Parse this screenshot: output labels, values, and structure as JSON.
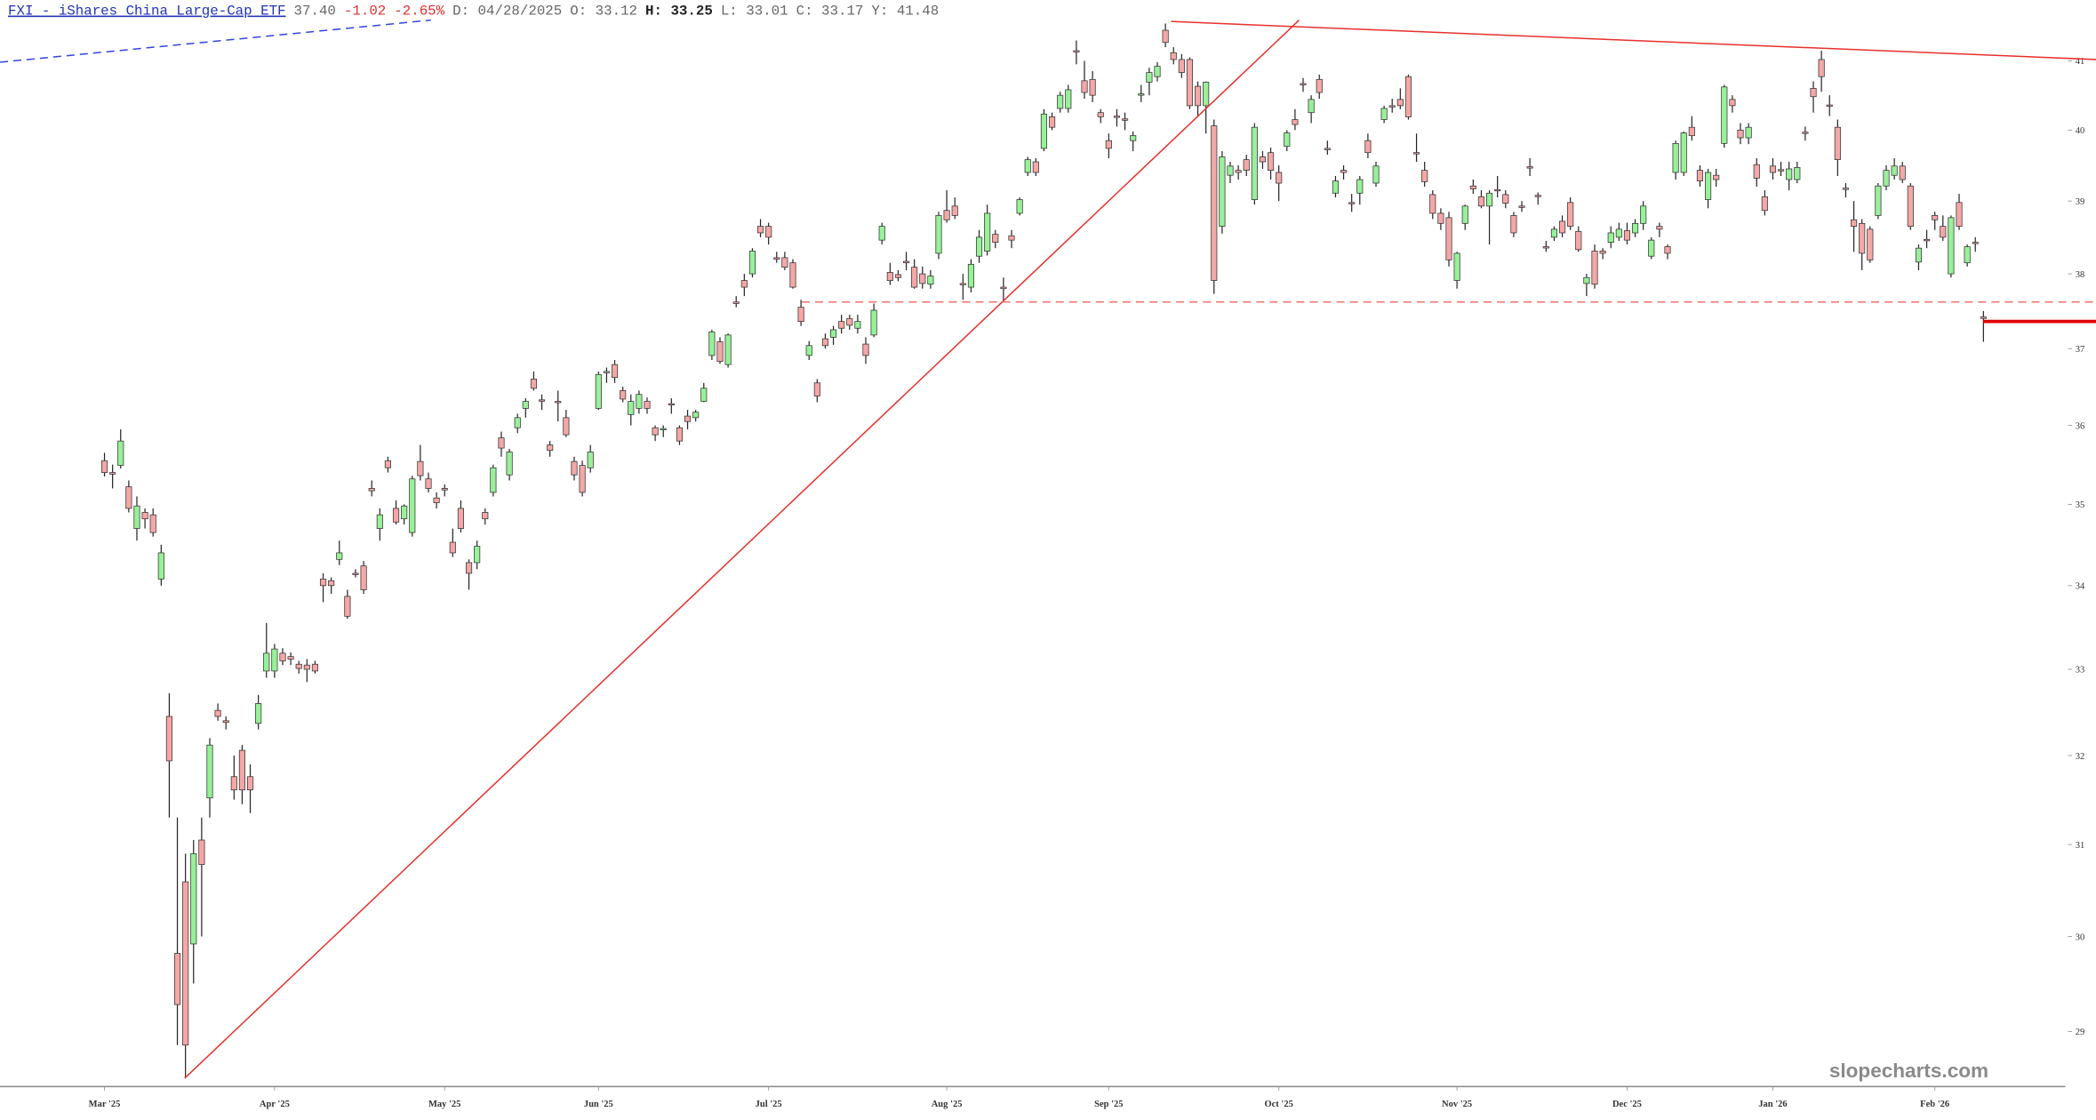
{
  "chart_data": {
    "type": "candlestick",
    "title": "FXI - iShares China Large-Cap ETF",
    "quote": {
      "last": "37.40",
      "change": "-1.02",
      "change_pct": "-2.65%",
      "date": "D: 04/28/2025",
      "open": "O: 33.12",
      "high": "H: 33.25",
      "low": "L: 33.01",
      "close": "C: 33.17",
      "y": "Y: 41.48"
    },
    "watermark": "slopecharts.com",
    "log_scale": true,
    "ylim": [
      28.45,
      41.9
    ],
    "yticks": [
      29,
      30,
      31,
      32,
      33,
      34,
      35,
      36,
      37,
      38,
      39,
      40,
      41
    ],
    "xlim": [
      -12.9,
      245.9
    ],
    "xticks": [
      {
        "value": 0,
        "label": "Mar '25"
      },
      {
        "value": 21,
        "label": "Apr '25"
      },
      {
        "value": 42,
        "label": "May '25"
      },
      {
        "value": 61,
        "label": "Jun '25"
      },
      {
        "value": 82,
        "label": "Jul '25"
      },
      {
        "value": 104,
        "label": "Aug '25"
      },
      {
        "value": 124,
        "label": "Sep '25"
      },
      {
        "value": 145,
        "label": "Oct '25"
      },
      {
        "value": 167,
        "label": "Nov '25"
      },
      {
        "value": 188,
        "label": "Dec '25"
      },
      {
        "value": 206,
        "label": "Jan '26"
      },
      {
        "value": 226,
        "label": "Feb '26"
      }
    ],
    "up_color": "#98f098",
    "down_color": "#f4a7a7",
    "wick_color": "#222222",
    "x": [
      0,
      1,
      2,
      3,
      4,
      5,
      6,
      7,
      8,
      9,
      10,
      11,
      12,
      13,
      14,
      15,
      16,
      17,
      18,
      19,
      20,
      21,
      22,
      23,
      24,
      25,
      26,
      27,
      28,
      29,
      30,
      31,
      32,
      33,
      34,
      35,
      36,
      37,
      38,
      39,
      40,
      41,
      42,
      43,
      44,
      45,
      46,
      47,
      48,
      49,
      50,
      51,
      52,
      53,
      54,
      55,
      56,
      57,
      58,
      59,
      60,
      61,
      62,
      63,
      64,
      65,
      66,
      67,
      68,
      69,
      70,
      71,
      72,
      73,
      74,
      75,
      76,
      77,
      78,
      79,
      80,
      81,
      82,
      83,
      84,
      85,
      86,
      87,
      88,
      89,
      90,
      91,
      92,
      93,
      94,
      95,
      96,
      97,
      98,
      99,
      100,
      101,
      102,
      103,
      104,
      105,
      106,
      107,
      108,
      109,
      110,
      111,
      112,
      113,
      114,
      115,
      116,
      117,
      118,
      119,
      120,
      121,
      122,
      123,
      124,
      125,
      126,
      127,
      128,
      129,
      130,
      131,
      132,
      133,
      134,
      135,
      136,
      137,
      138,
      139,
      140,
      141,
      142,
      143,
      144,
      145,
      146,
      147,
      148,
      149,
      150,
      151,
      152,
      153,
      154,
      155,
      156,
      157,
      158,
      159,
      160,
      161,
      162,
      163,
      164,
      165,
      166,
      167,
      168,
      169,
      170,
      171,
      172,
      173,
      174,
      175,
      176,
      177,
      178,
      179,
      180,
      181,
      182,
      183,
      184,
      185,
      186,
      187,
      188,
      189,
      190,
      191,
      192,
      193,
      194,
      195,
      196,
      197,
      198,
      199,
      200,
      201,
      202,
      203,
      204,
      205,
      206,
      207,
      208,
      209,
      210,
      211,
      212,
      213,
      214,
      215,
      216,
      217,
      218,
      219,
      220,
      221,
      222,
      223,
      224,
      225,
      226,
      227,
      228,
      229,
      230,
      231,
      232
    ],
    "open": [
      35.55,
      35.4,
      35.49,
      35.22,
      34.7,
      34.9,
      34.87,
      34.08,
      32.45,
      29.82,
      30.59,
      29.92,
      31.05,
      31.52,
      32.52,
      32.4,
      31.76,
      32.06,
      31.76,
      32.37,
      32.98,
      32.98,
      33.19,
      33.15,
      33.06,
      33.05,
      33.06,
      34.08,
      34.06,
      34.32,
      33.87,
      34.15,
      34.24,
      35.2,
      34.7,
      35.55,
      34.95,
      34.82,
      34.65,
      35.54,
      35.32,
      35.08,
      35.2,
      34.53,
      34.95,
      34.28,
      34.28,
      34.9,
      35.15,
      35.84,
      35.37,
      35.97,
      36.22,
      36.6,
      36.33,
      35.75,
      36.31,
      36.1,
      35.54,
      35.49,
      35.46,
      36.22,
      36.69,
      36.79,
      36.45,
      36.14,
      36.22,
      36.31,
      35.97,
      35.95,
      36.28,
      35.97,
      36.12,
      36.1,
      36.31,
      36.91,
      37.09,
      36.79,
      37.62,
      37.91,
      38.0,
      38.65,
      38.65,
      38.22,
      38.22,
      38.15,
      37.55,
      36.91,
      36.55,
      37.13,
      37.15,
      37.36,
      37.4,
      37.27,
      37.06,
      37.18,
      38.46,
      38.02,
      37.99,
      38.17,
      38.09,
      38.0,
      37.86,
      38.28,
      38.87,
      38.93,
      37.87,
      37.82,
      38.24,
      38.31,
      38.54,
      37.82,
      38.52,
      38.83,
      39.4,
      39.55,
      39.74,
      40.19,
      40.31,
      40.31,
      41.15,
      40.71,
      40.73,
      40.25,
      39.85,
      40.2,
      40.16,
      39.85,
      40.52,
      40.69,
      40.77,
      41.45,
      41.12,
      41.02,
      41.02,
      40.63,
      40.35,
      40.06,
      38.65,
      39.36,
      39.43,
      39.58,
      39.02,
      39.62,
      39.68,
      39.4,
      39.77,
      40.15,
      40.67,
      40.25,
      40.73,
      39.74,
      39.11,
      39.43,
      38.98,
      39.11,
      39.85,
      39.25,
      40.15,
      40.35,
      40.44,
      40.77,
      39.68,
      39.43,
      39.09,
      38.83,
      38.77,
      37.91,
      38.69,
      39.21,
      39.06,
      38.93,
      39.16,
      39.09,
      38.8,
      38.93,
      39.48,
      39.08,
      38.37,
      38.5,
      38.72,
      38.98,
      38.58,
      37.87,
      38.31,
      38.31,
      38.43,
      38.5,
      38.59,
      38.56,
      38.69,
      38.24,
      38.65,
      38.37,
      39.4,
      39.4,
      40.04,
      39.43,
      39.02,
      39.36,
      39.81,
      40.44,
      40.0,
      39.89,
      39.51,
      39.06,
      39.49,
      39.44,
      39.3,
      39.3,
      39.97,
      40.6,
      41.02,
      40.36,
      40.04,
      39.18,
      38.74,
      38.69,
      38.61,
      38.8,
      39.21,
      39.36,
      39.49,
      39.21,
      38.16,
      38.47,
      38.8,
      38.65,
      38.0,
      38.98,
      38.15,
      38.43,
      37.42
    ],
    "high": [
      35.65,
      35.5,
      35.95,
      35.3,
      35.1,
      34.95,
      34.95,
      34.5,
      32.72,
      31.3,
      30.9,
      31.05,
      31.3,
      32.2,
      32.6,
      32.45,
      32.0,
      32.12,
      31.9,
      32.7,
      33.55,
      33.3,
      33.25,
      33.2,
      33.1,
      33.12,
      33.1,
      34.15,
      34.1,
      34.55,
      33.95,
      34.2,
      34.3,
      35.3,
      34.95,
      35.6,
      35.05,
      35.0,
      35.36,
      35.75,
      35.4,
      35.15,
      35.25,
      34.7,
      35.05,
      34.32,
      34.55,
      34.95,
      35.5,
      35.92,
      35.7,
      36.15,
      36.35,
      36.7,
      36.4,
      35.8,
      36.45,
      36.2,
      35.6,
      35.55,
      35.75,
      36.7,
      36.75,
      36.85,
      36.5,
      36.4,
      36.45,
      36.36,
      36.0,
      36.0,
      36.35,
      36.0,
      36.2,
      36.2,
      36.55,
      37.25,
      37.15,
      37.2,
      37.7,
      38.0,
      38.35,
      38.75,
      38.7,
      38.3,
      38.3,
      38.2,
      37.65,
      37.1,
      36.6,
      37.2,
      37.3,
      37.45,
      37.45,
      37.45,
      37.15,
      37.6,
      38.7,
      38.15,
      38.05,
      38.3,
      38.2,
      38.1,
      38.05,
      38.85,
      39.15,
      39.05,
      38.0,
      38.2,
      38.6,
      38.95,
      38.6,
      37.95,
      38.6,
      39.05,
      39.62,
      39.6,
      40.3,
      40.25,
      40.55,
      40.65,
      41.3,
      41.0,
      40.85,
      40.3,
      39.95,
      40.3,
      40.25,
      39.98,
      40.65,
      40.9,
      40.98,
      41.55,
      41.2,
      41.1,
      41.05,
      40.7,
      40.7,
      40.15,
      39.7,
      39.55,
      39.5,
      39.65,
      40.1,
      39.7,
      39.75,
      39.5,
      40.0,
      40.3,
      40.75,
      40.5,
      40.8,
      39.85,
      39.35,
      39.5,
      39.1,
      39.35,
      39.95,
      39.55,
      40.35,
      40.45,
      40.6,
      40.8,
      39.95,
      39.55,
      39.15,
      38.9,
      38.85,
      38.3,
      38.95,
      39.3,
      39.15,
      39.15,
      39.35,
      39.15,
      38.85,
      39.0,
      39.6,
      39.12,
      38.45,
      38.65,
      38.8,
      39.05,
      38.65,
      38.0,
      38.4,
      38.35,
      38.65,
      38.7,
      38.7,
      38.75,
      39.0,
      38.5,
      38.7,
      38.4,
      39.85,
      39.98,
      40.2,
      39.5,
      39.45,
      39.45,
      40.65,
      40.5,
      40.1,
      40.1,
      39.6,
      39.15,
      39.6,
      39.55,
      39.55,
      39.55,
      40.05,
      40.7,
      41.15,
      40.5,
      40.15,
      39.25,
      39.0,
      38.75,
      38.65,
      39.25,
      39.5,
      39.6,
      39.55,
      39.25,
      38.4,
      38.6,
      38.85,
      38.8,
      38.8,
      39.1,
      38.4,
      38.5,
      37.5
    ],
    "low": [
      35.35,
      35.2,
      35.45,
      34.9,
      34.55,
      34.7,
      34.6,
      34.0,
      31.3,
      28.86,
      28.52,
      29.5,
      30.0,
      31.3,
      32.4,
      32.3,
      31.5,
      31.45,
      31.35,
      32.3,
      32.9,
      32.9,
      33.05,
      33.05,
      32.95,
      32.85,
      32.95,
      33.8,
      33.9,
      34.25,
      33.6,
      34.1,
      33.9,
      35.1,
      34.55,
      35.4,
      34.75,
      34.75,
      34.6,
      35.3,
      35.15,
      34.95,
      35.1,
      34.35,
      34.65,
      33.95,
      34.2,
      34.75,
      35.1,
      35.6,
      35.3,
      35.9,
      36.1,
      36.45,
      36.2,
      35.6,
      36.05,
      35.85,
      35.3,
      35.1,
      35.4,
      36.2,
      36.55,
      36.55,
      36.3,
      36.0,
      36.15,
      36.15,
      35.8,
      35.85,
      36.15,
      35.75,
      35.95,
      36.05,
      36.3,
      36.85,
      36.8,
      36.75,
      37.55,
      37.7,
      37.95,
      38.5,
      38.4,
      38.15,
      38.05,
      37.8,
      37.3,
      36.85,
      36.3,
      37.0,
      37.05,
      37.2,
      37.25,
      37.2,
      36.8,
      37.15,
      38.4,
      37.85,
      37.9,
      38.05,
      37.8,
      37.8,
      37.8,
      38.2,
      38.7,
      38.75,
      37.65,
      37.75,
      38.15,
      38.25,
      38.35,
      37.62,
      38.35,
      38.8,
      39.35,
      39.35,
      39.7,
      40.0,
      40.25,
      40.25,
      40.95,
      40.45,
      40.4,
      40.1,
      39.6,
      40.05,
      40.0,
      39.7,
      40.4,
      40.5,
      40.7,
      41.2,
      40.95,
      40.75,
      40.3,
      40.2,
      39.95,
      37.73,
      38.55,
      39.25,
      39.3,
      39.35,
      38.95,
      39.45,
      39.3,
      39.0,
      39.7,
      40.0,
      40.55,
      40.1,
      40.45,
      39.65,
      39.05,
      39.3,
      38.85,
      38.95,
      39.6,
      39.2,
      40.1,
      40.25,
      40.3,
      40.15,
      39.55,
      39.2,
      38.75,
      38.6,
      38.1,
      37.8,
      38.6,
      39.1,
      38.9,
      38.4,
      39.05,
      38.9,
      38.5,
      38.85,
      39.35,
      38.95,
      38.3,
      38.45,
      38.5,
      38.6,
      38.3,
      37.7,
      37.8,
      38.2,
      38.35,
      38.45,
      38.4,
      38.5,
      38.6,
      38.2,
      38.5,
      38.2,
      39.3,
      39.35,
      39.85,
      39.2,
      38.9,
      39.2,
      39.75,
      40.25,
      39.8,
      39.8,
      39.2,
      38.8,
      39.3,
      39.35,
      39.15,
      39.25,
      39.85,
      40.25,
      40.55,
      40.2,
      39.35,
      39.05,
      38.3,
      38.05,
      38.15,
      38.75,
      39.15,
      39.3,
      39.25,
      38.6,
      38.05,
      38.35,
      38.6,
      38.45,
      37.95,
      38.6,
      38.1,
      38.3,
      37.09
    ],
    "close": [
      35.4,
      35.38,
      35.8,
      34.95,
      34.98,
      34.82,
      34.65,
      34.4,
      31.94,
      29.28,
      28.86,
      30.9,
      30.78,
      32.12,
      32.45,
      32.38,
      31.61,
      31.61,
      31.61,
      32.6,
      33.19,
      33.24,
      33.1,
      33.12,
      33.01,
      33.0,
      32.98,
      34.0,
      34.0,
      34.4,
      33.63,
      34.14,
      33.95,
      35.17,
      34.87,
      35.46,
      34.78,
      34.98,
      35.32,
      35.36,
      35.2,
      35.02,
      35.18,
      34.4,
      34.7,
      34.15,
      34.48,
      34.82,
      35.46,
      35.71,
      35.66,
      36.1,
      36.31,
      36.48,
      36.32,
      35.68,
      36.3,
      35.88,
      35.37,
      35.15,
      35.66,
      36.66,
      36.7,
      36.62,
      36.34,
      36.31,
      36.4,
      36.22,
      35.88,
      35.96,
      36.27,
      35.8,
      36.05,
      36.17,
      36.48,
      37.22,
      36.83,
      37.18,
      37.6,
      37.82,
      38.31,
      38.56,
      38.5,
      38.2,
      38.09,
      37.82,
      37.36,
      37.04,
      36.38,
      37.04,
      37.25,
      37.27,
      37.31,
      37.36,
      36.91,
      37.51,
      38.65,
      37.91,
      37.95,
      38.15,
      37.82,
      37.87,
      37.97,
      38.8,
      38.74,
      38.8,
      37.86,
      38.13,
      38.5,
      38.83,
      38.43,
      37.8,
      38.46,
      39.02,
      39.58,
      39.4,
      40.23,
      40.04,
      40.5,
      40.58,
      41.14,
      40.54,
      40.5,
      40.19,
      39.74,
      40.19,
      40.14,
      39.92,
      40.52,
      40.83,
      40.92,
      41.27,
      41.02,
      40.83,
      40.35,
      40.35,
      40.69,
      37.91,
      39.62,
      39.49,
      39.4,
      39.43,
      40.04,
      39.55,
      39.43,
      39.25,
      39.96,
      40.08,
      40.66,
      40.44,
      40.54,
      39.73,
      39.28,
      39.4,
      38.97,
      39.3,
      39.68,
      39.49,
      40.31,
      40.34,
      40.35,
      40.19,
      39.67,
      39.27,
      38.83,
      38.69,
      38.19,
      38.28,
      38.93,
      39.17,
      38.93,
      39.11,
      39.15,
      38.97,
      38.56,
      38.92,
      39.47,
      39.07,
      38.36,
      38.61,
      38.56,
      38.65,
      38.33,
      37.95,
      37.86,
      38.28,
      38.56,
      38.61,
      38.46,
      38.69,
      38.93,
      38.46,
      38.61,
      38.28,
      39.81,
      39.96,
      39.92,
      39.28,
      39.4,
      39.3,
      40.62,
      40.35,
      39.89,
      40.04,
      39.32,
      38.87,
      39.4,
      39.43,
      39.45,
      39.47,
      39.96,
      40.48,
      40.77,
      40.35,
      39.58,
      39.17,
      38.65,
      38.28,
      38.19,
      39.21,
      39.43,
      39.49,
      39.3,
      38.65,
      38.35,
      38.46,
      38.74,
      38.5,
      38.77,
      38.65,
      38.37,
      38.42,
      37.4
    ],
    "lines": [
      {
        "x": [
          -12.9,
          40.3
        ],
        "y": [
          40.98,
          41.6
        ],
        "color": "#3344dd",
        "dash": true,
        "width": 1
      },
      {
        "x": [
          9.9,
          147.5
        ],
        "y": [
          28.52,
          41.6
        ],
        "color": "#e8302c",
        "dash": false,
        "width": 1
      },
      {
        "x": [
          131.7,
          245.9
        ],
        "y": [
          41.58,
          41.02
        ],
        "color": "#e8302c",
        "dash": false,
        "width": 1
      },
      {
        "x": [
          86.1,
          245.9
        ],
        "y": [
          37.62,
          37.62
        ],
        "color": "#f07070",
        "dash": true,
        "width": 1
      },
      {
        "x": [
          232,
          245.9
        ],
        "y": [
          37.36,
          37.36
        ],
        "color": "#e00000",
        "dash": false,
        "width": 2.5
      }
    ]
  }
}
